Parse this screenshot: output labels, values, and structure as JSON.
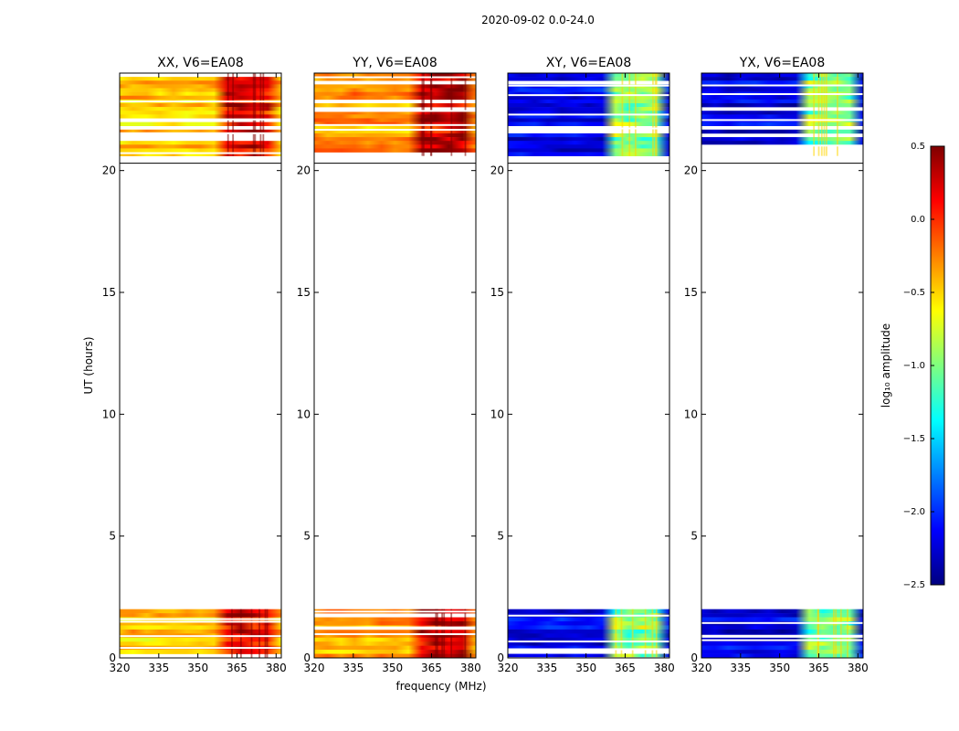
{
  "chart_data": {
    "type": "heatmap",
    "suptitle": "2020-09-02 0.0-24.0",
    "xlabel": "frequency (MHz)",
    "ylabel": "UT (hours)",
    "xlim": [
      320,
      382
    ],
    "ylim": [
      0,
      24
    ],
    "xticks": [
      320,
      335,
      350,
      365,
      380
    ],
    "yticks": [
      0,
      5,
      10,
      15,
      20
    ],
    "yaxis_split": [
      2.0,
      20.3
    ],
    "colorbar": {
      "label": "log₁₀ amplitude",
      "range": [
        -2.5,
        0.5
      ],
      "ticks": [
        "0.5",
        "0.0",
        "−0.5",
        "−1.0",
        "−1.5",
        "−2.0",
        "−2.5"
      ],
      "colormap": "jet"
    },
    "panels": [
      {
        "title": "XX, V6=EA08",
        "base_level": -0.45,
        "rfi_start_mhz": 361,
        "rfi_end_mhz": 378,
        "rfi_level": 0.2
      },
      {
        "title": "YY, V6=EA08",
        "base_level": -0.35,
        "rfi_start_mhz": 361,
        "rfi_end_mhz": 378,
        "rfi_level": 0.3
      },
      {
        "title": "XY, V6=EA08",
        "base_level": -2.2,
        "rfi_start_mhz": 361,
        "rfi_end_mhz": 377,
        "rfi_level": -1.0
      },
      {
        "title": "YX, V6=EA08",
        "base_level": -2.2,
        "rfi_start_mhz": 361,
        "rfi_end_mhz": 377,
        "rfi_level": -1.0
      }
    ]
  }
}
